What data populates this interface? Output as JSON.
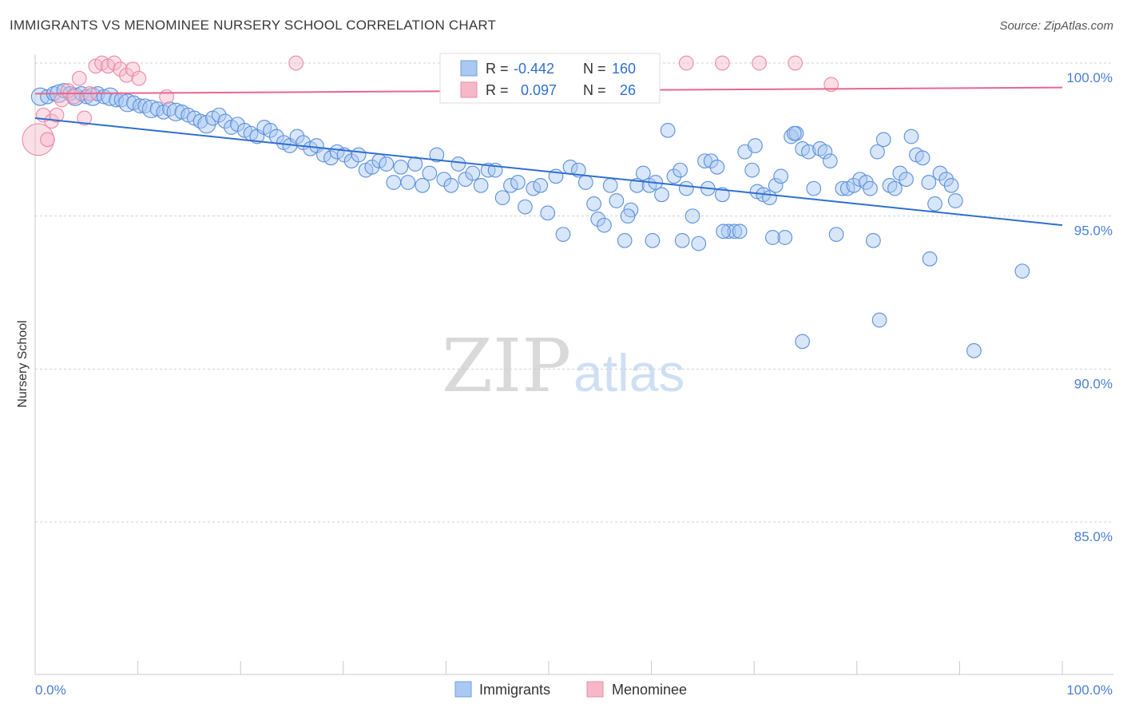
{
  "header": {
    "title": "IMMIGRANTS VS MENOMINEE NURSERY SCHOOL CORRELATION CHART",
    "source": "Source: ZipAtlas.com"
  },
  "colors": {
    "blue": "#2f6fd1",
    "blue_fill": "#a9c8f2",
    "pink": "#e8668e",
    "pink_fill": "#f6b8c9",
    "grid": "#d0d0d0",
    "axis_label": "#4a7fd0"
  },
  "watermark": {
    "zip": "ZIP",
    "atlas": "atlas"
  },
  "legend": {
    "rows": [
      {
        "r_label": "R =",
        "r_value": "-0.442",
        "n_label": "N =",
        "n_value": "160"
      },
      {
        "r_label": "R =",
        "r_value": "0.097",
        "n_label": "N =",
        "n_value": "26"
      }
    ]
  },
  "chart_data": {
    "type": "scatter",
    "title": "IMMIGRANTS VS MENOMINEE NURSERY SCHOOL CORRELATION CHART",
    "xlabel": "",
    "ylabel": "Nursery School",
    "xlim": [
      0,
      100
    ],
    "ylim": [
      80.5,
      101.0
    ],
    "x_tick_labels": [
      "0.0%",
      "100.0%"
    ],
    "y_ticks": [
      100,
      95,
      90,
      85
    ],
    "y_tick_labels": [
      "100.0%",
      "95.0%",
      "90.0%",
      "85.0%"
    ],
    "grid": true,
    "legend": [
      "Immigrants",
      "Menominee"
    ],
    "series": [
      {
        "name": "Immigrants",
        "color": "#2f6fd1",
        "r": -0.442,
        "n": 160,
        "trend": {
          "x": [
            0,
            100
          ],
          "y": [
            98.2,
            94.7
          ]
        },
        "points": [
          [
            0.5,
            98.9,
            5
          ],
          [
            1.2,
            98.9,
            4
          ],
          [
            1.8,
            99.0,
            4
          ],
          [
            2.3,
            99.0,
            5
          ],
          [
            2.8,
            99.1,
            4
          ],
          [
            3.4,
            99.0,
            4
          ],
          [
            3.9,
            98.9,
            5
          ],
          [
            4.5,
            99.0,
            4
          ],
          [
            5.0,
            98.9,
            4
          ],
          [
            5.6,
            98.9,
            5
          ],
          [
            6.1,
            99.0,
            4
          ],
          [
            6.7,
            98.9,
            4
          ],
          [
            7.3,
            98.9,
            5
          ],
          [
            7.9,
            98.8,
            4
          ],
          [
            8.4,
            98.8,
            4
          ],
          [
            9.0,
            98.7,
            5
          ],
          [
            9.6,
            98.7,
            4
          ],
          [
            10.2,
            98.6,
            4
          ],
          [
            10.7,
            98.6,
            4
          ],
          [
            11.3,
            98.5,
            5
          ],
          [
            11.9,
            98.5,
            4
          ],
          [
            12.5,
            98.4,
            4
          ],
          [
            13.1,
            98.5,
            4
          ],
          [
            13.7,
            98.4,
            5
          ],
          [
            14.3,
            98.4,
            4
          ],
          [
            14.9,
            98.3,
            4
          ],
          [
            15.5,
            98.2,
            4
          ],
          [
            16.1,
            98.1,
            4
          ],
          [
            16.7,
            98.0,
            5
          ],
          [
            17.3,
            98.2,
            4
          ],
          [
            17.9,
            98.3,
            4
          ],
          [
            18.5,
            98.1,
            4
          ],
          [
            19.1,
            97.9,
            4
          ],
          [
            19.7,
            98.0,
            4
          ],
          [
            20.4,
            97.8,
            4
          ],
          [
            21.0,
            97.7,
            4
          ],
          [
            21.6,
            97.6,
            4
          ],
          [
            22.3,
            97.9,
            4
          ],
          [
            22.9,
            97.8,
            4
          ],
          [
            23.5,
            97.6,
            4
          ],
          [
            24.2,
            97.4,
            4
          ],
          [
            24.8,
            97.3,
            4
          ],
          [
            25.5,
            97.6,
            4
          ],
          [
            26.1,
            97.4,
            4
          ],
          [
            26.8,
            97.2,
            4
          ],
          [
            27.4,
            97.3,
            4
          ],
          [
            28.1,
            97.0,
            4
          ],
          [
            28.8,
            96.9,
            4
          ],
          [
            29.4,
            97.1,
            4
          ],
          [
            30.1,
            97.0,
            4
          ],
          [
            30.8,
            96.8,
            4
          ],
          [
            31.5,
            97.0,
            4
          ],
          [
            32.2,
            96.5,
            4
          ],
          [
            32.8,
            96.6,
            4
          ],
          [
            33.5,
            96.8,
            4
          ],
          [
            34.2,
            96.7,
            4
          ],
          [
            34.9,
            96.1,
            4
          ],
          [
            35.6,
            96.6,
            4
          ],
          [
            36.3,
            96.1,
            4
          ],
          [
            37.0,
            96.7,
            4
          ],
          [
            37.7,
            96.0,
            4
          ],
          [
            38.4,
            96.4,
            4
          ],
          [
            39.1,
            97.0,
            4
          ],
          [
            39.8,
            96.2,
            4
          ],
          [
            40.5,
            96.0,
            4
          ],
          [
            41.2,
            96.7,
            4
          ],
          [
            41.9,
            96.2,
            4
          ],
          [
            42.6,
            96.4,
            4
          ],
          [
            43.4,
            96.0,
            4
          ],
          [
            44.1,
            96.5,
            4
          ],
          [
            44.8,
            96.5,
            4
          ],
          [
            45.5,
            95.6,
            4
          ],
          [
            46.3,
            96.0,
            4
          ],
          [
            47.0,
            96.1,
            4
          ],
          [
            47.7,
            95.3,
            4
          ],
          [
            48.5,
            95.9,
            4
          ],
          [
            49.2,
            96.0,
            4
          ],
          [
            49.9,
            95.1,
            4
          ],
          [
            50.7,
            96.3,
            4
          ],
          [
            51.4,
            94.4,
            4
          ],
          [
            52.1,
            96.6,
            4
          ],
          [
            52.9,
            96.5,
            4
          ],
          [
            53.6,
            96.1,
            4
          ],
          [
            54.4,
            95.4,
            4
          ],
          [
            54.8,
            94.9,
            4
          ],
          [
            55.4,
            94.7,
            4
          ],
          [
            56.0,
            96.0,
            4
          ],
          [
            56.6,
            95.5,
            4
          ],
          [
            57.4,
            94.2,
            4
          ],
          [
            58.0,
            95.2,
            4
          ],
          [
            58.6,
            96.0,
            4
          ],
          [
            59.2,
            96.4,
            4
          ],
          [
            59.8,
            96.0,
            4
          ],
          [
            60.4,
            96.1,
            4
          ],
          [
            61.0,
            95.7,
            4
          ],
          [
            61.6,
            97.8,
            4
          ],
          [
            62.2,
            96.3,
            4
          ],
          [
            62.8,
            96.5,
            4
          ],
          [
            63.4,
            95.9,
            4
          ],
          [
            64.0,
            95.0,
            4
          ],
          [
            64.6,
            94.1,
            4
          ],
          [
            65.2,
            96.8,
            4
          ],
          [
            65.8,
            96.8,
            4
          ],
          [
            66.4,
            96.6,
            4
          ],
          [
            66.9,
            95.7,
            4
          ],
          [
            67.5,
            94.5,
            4
          ],
          [
            68.1,
            94.5,
            4
          ],
          [
            69.1,
            97.1,
            4
          ],
          [
            69.8,
            96.5,
            4
          ],
          [
            70.3,
            95.8,
            4
          ],
          [
            70.9,
            95.7,
            4
          ],
          [
            71.5,
            95.6,
            4
          ],
          [
            72.1,
            96.0,
            4
          ],
          [
            73.0,
            94.3,
            4
          ],
          [
            73.6,
            97.6,
            4
          ],
          [
            74.1,
            97.7,
            4
          ],
          [
            74.7,
            97.2,
            4
          ],
          [
            75.3,
            97.1,
            4
          ],
          [
            75.8,
            95.9,
            4
          ],
          [
            76.4,
            97.2,
            4
          ],
          [
            76.9,
            97.1,
            4
          ],
          [
            77.4,
            96.8,
            4
          ],
          [
            78.0,
            94.4,
            4
          ],
          [
            78.6,
            95.9,
            4
          ],
          [
            79.1,
            95.9,
            4
          ],
          [
            79.7,
            96.0,
            4
          ],
          [
            80.3,
            96.2,
            4
          ],
          [
            80.9,
            96.1,
            4
          ],
          [
            81.3,
            95.9,
            4
          ],
          [
            82.0,
            97.1,
            4
          ],
          [
            82.6,
            97.5,
            4
          ],
          [
            83.2,
            96.0,
            4
          ],
          [
            83.7,
            95.9,
            4
          ],
          [
            84.2,
            96.4,
            4
          ],
          [
            84.8,
            96.2,
            4
          ],
          [
            85.3,
            97.6,
            4
          ],
          [
            85.8,
            97.0,
            4
          ],
          [
            86.4,
            96.9,
            4
          ],
          [
            87.0,
            96.1,
            4
          ],
          [
            87.6,
            95.4,
            4
          ],
          [
            88.1,
            96.4,
            4
          ],
          [
            88.7,
            96.2,
            4
          ],
          [
            89.2,
            96.0,
            4
          ],
          [
            89.6,
            95.5,
            4
          ],
          [
            73.9,
            97.7,
            4
          ],
          [
            81.6,
            94.2,
            4
          ],
          [
            71.8,
            94.3,
            4
          ],
          [
            70.1,
            97.3,
            4
          ],
          [
            67.0,
            94.5,
            4
          ],
          [
            63.0,
            94.2,
            4
          ],
          [
            60.1,
            94.2,
            4
          ],
          [
            57.7,
            95.0,
            4
          ],
          [
            65.5,
            95.9,
            4
          ],
          [
            68.6,
            94.5,
            4
          ],
          [
            72.6,
            96.3,
            4
          ],
          [
            74.7,
            90.9,
            4
          ],
          [
            82.2,
            91.6,
            4
          ],
          [
            87.1,
            93.6,
            4
          ],
          [
            91.4,
            90.6,
            4
          ],
          [
            96.1,
            93.2,
            4
          ]
        ]
      },
      {
        "name": "Menominee",
        "color": "#e8668e",
        "r": 0.097,
        "n": 26,
        "trend": {
          "x": [
            0,
            100
          ],
          "y": [
            99.0,
            99.2
          ]
        },
        "points": [
          [
            0.3,
            97.5,
            9
          ],
          [
            0.8,
            98.3,
            4
          ],
          [
            1.2,
            97.5,
            4
          ],
          [
            1.6,
            98.1,
            4
          ],
          [
            2.1,
            98.3,
            4
          ],
          [
            2.6,
            98.8,
            4
          ],
          [
            3.2,
            99.1,
            4
          ],
          [
            3.8,
            98.9,
            4
          ],
          [
            4.3,
            99.5,
            4
          ],
          [
            4.8,
            98.2,
            4
          ],
          [
            5.3,
            99.0,
            4
          ],
          [
            5.9,
            99.9,
            4
          ],
          [
            6.5,
            100.0,
            4
          ],
          [
            7.1,
            99.9,
            4
          ],
          [
            7.7,
            100.0,
            4
          ],
          [
            8.3,
            99.8,
            4
          ],
          [
            8.9,
            99.6,
            4
          ],
          [
            9.5,
            99.8,
            4
          ],
          [
            10.1,
            99.5,
            4
          ],
          [
            12.8,
            98.9,
            4
          ],
          [
            25.4,
            100.0,
            4
          ],
          [
            63.4,
            100.0,
            4
          ],
          [
            66.9,
            100.0,
            4
          ],
          [
            70.5,
            100.0,
            4
          ],
          [
            74.0,
            100.0,
            4
          ],
          [
            77.5,
            99.3,
            4
          ]
        ]
      }
    ]
  },
  "bottom_legend": [
    "Immigrants",
    "Menominee"
  ]
}
